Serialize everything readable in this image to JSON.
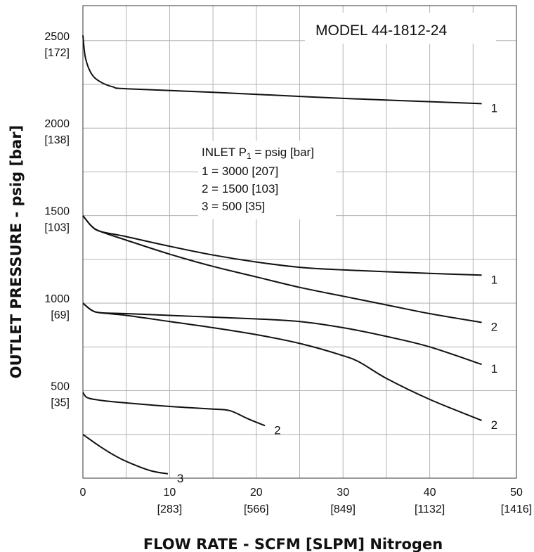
{
  "model_label": "MODEL 44-1812-24",
  "legend": {
    "title_prefix": "INLET P",
    "title_subscript": "1",
    "title_suffix": " = psig [bar]",
    "entries": [
      "1 = 3000 [207]",
      "2 = 1500 [103]",
      "3 = 500 [35]"
    ]
  },
  "chart_data": {
    "type": "line",
    "xlabel": "FLOW RATE - SCFM [SLPM] Nitrogen",
    "ylabel": "OUTLET PRESSURE - psig [bar]",
    "xlim": [
      0,
      50
    ],
    "ylim": [
      0,
      2700
    ],
    "grid": true,
    "x_ticks": [
      {
        "value": 0,
        "label": "0",
        "sub": ""
      },
      {
        "value": 10,
        "label": "10",
        "sub": "[283]"
      },
      {
        "value": 20,
        "label": "20",
        "sub": "[566]"
      },
      {
        "value": 30,
        "label": "30",
        "sub": "[849]"
      },
      {
        "value": 40,
        "label": "40",
        "sub": "[1132]"
      },
      {
        "value": 50,
        "label": "50",
        "sub": "[1416]"
      }
    ],
    "y_ticks": [
      {
        "value": 500,
        "label": "500",
        "sub": "[35]"
      },
      {
        "value": 1000,
        "label": "1000",
        "sub": "[69]"
      },
      {
        "value": 1500,
        "label": "1500",
        "sub": "[103]"
      },
      {
        "value": 2000,
        "label": "2000",
        "sub": "[138]"
      },
      {
        "value": 2500,
        "label": "2500",
        "sub": "[172]"
      }
    ],
    "series": [
      {
        "name": "1",
        "x": [
          0,
          0.3,
          1,
          2,
          3.5,
          5,
          15,
          30,
          46
        ],
        "y": [
          2530,
          2400,
          2310,
          2265,
          2235,
          2225,
          2205,
          2170,
          2140
        ]
      },
      {
        "name": "1",
        "x": [
          0,
          1,
          2,
          5,
          10,
          15,
          20,
          25,
          30,
          40,
          46
        ],
        "y": [
          1500,
          1440,
          1410,
          1380,
          1325,
          1275,
          1235,
          1205,
          1190,
          1170,
          1160
        ]
      },
      {
        "name": "2",
        "x": [
          0,
          1,
          2,
          5,
          10,
          15,
          20,
          25,
          30,
          35,
          40,
          46
        ],
        "y": [
          1500,
          1440,
          1410,
          1360,
          1280,
          1210,
          1150,
          1090,
          1040,
          990,
          940,
          890
        ]
      },
      {
        "name": "1",
        "x": [
          0,
          1,
          2,
          5,
          10,
          15,
          20,
          25,
          30,
          35,
          40,
          46
        ],
        "y": [
          1000,
          960,
          945,
          940,
          930,
          920,
          910,
          895,
          860,
          810,
          750,
          650
        ]
      },
      {
        "name": "2",
        "x": [
          0,
          1,
          2,
          5,
          10,
          15,
          20,
          25,
          30,
          32,
          35,
          40,
          46
        ],
        "y": [
          1000,
          960,
          945,
          930,
          895,
          860,
          820,
          770,
          700,
          660,
          570,
          450,
          330
        ]
      },
      {
        "name": "2",
        "x": [
          0,
          0.5,
          2,
          5,
          10,
          15,
          17,
          19,
          21
        ],
        "y": [
          490,
          460,
          445,
          430,
          410,
          395,
          385,
          340,
          300
        ]
      },
      {
        "name": "3",
        "x": [
          0,
          2,
          4,
          6,
          8,
          9.8
        ],
        "y": [
          250,
          180,
          120,
          75,
          40,
          25
        ]
      }
    ],
    "curve_labels": [
      "1",
      "1",
      "2",
      "1",
      "2",
      "2",
      "3"
    ]
  }
}
